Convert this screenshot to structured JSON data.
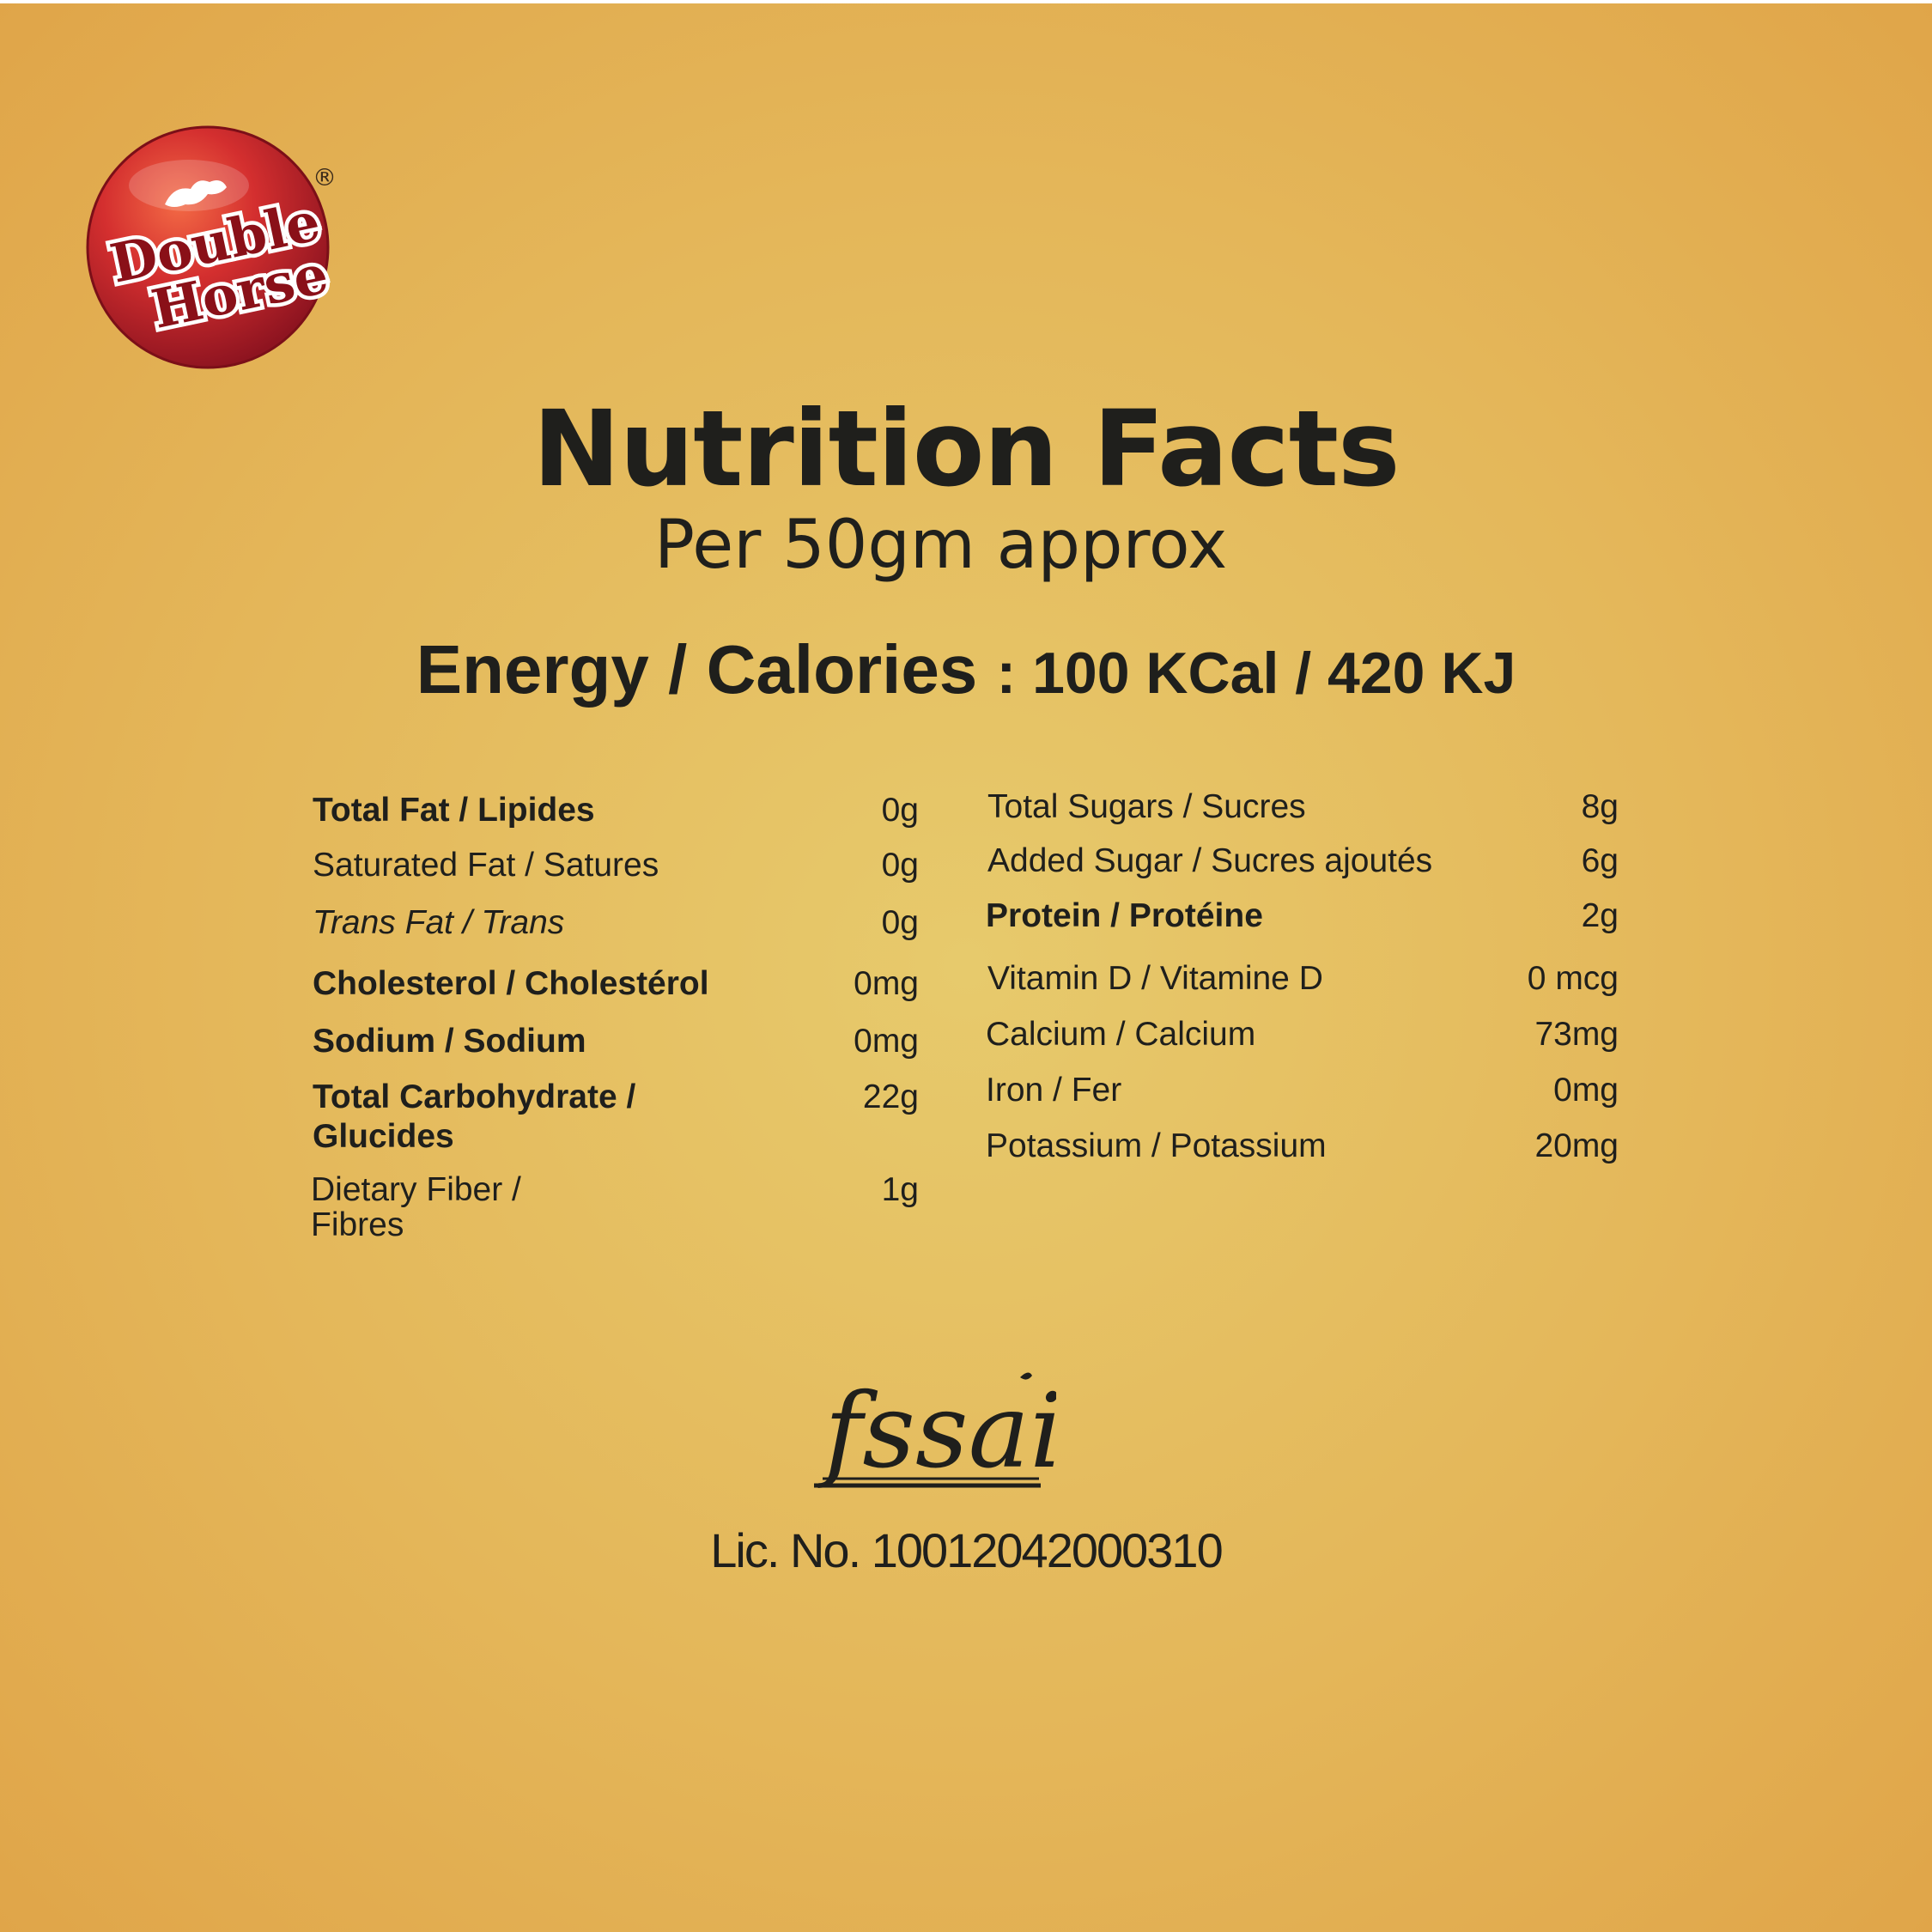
{
  "brand": {
    "name": "Double Horse",
    "registered_mark": "®"
  },
  "heading": {
    "title": "Nutrition Facts",
    "serving": "Per 50gm approx"
  },
  "energy": {
    "label": "Energy / Calories",
    "value": ": 100 KCal / 420 KJ"
  },
  "left_nutrients": [
    {
      "label": "Total Fat /  Lipides",
      "amount": "0g",
      "style": "bold"
    },
    {
      "label": "Saturated Fat /  Satures",
      "amount": "0g",
      "style": "normal"
    },
    {
      "label": "Trans Fat /  Trans",
      "amount": "0g",
      "style": "italic"
    },
    {
      "label": "Cholesterol /  Cholestérol",
      "amount": "0mg",
      "style": "bold"
    },
    {
      "label": "Sodium /  Sodium",
      "amount": "0mg",
      "style": "bold"
    },
    {
      "label": "Total Carbohydrate /",
      "label_line2": "Glucides",
      "amount": "22g",
      "style": "bold"
    },
    {
      "label": "Dietary Fiber /",
      "label_line2": "Fibres",
      "amount": "1g",
      "style": "normal"
    }
  ],
  "right_nutrients": [
    {
      "label": "Total Sugars / Sucres",
      "amount": "8g",
      "style": "normal"
    },
    {
      "label": "Added Sugar / Sucres ajoutés",
      "amount": "6g",
      "style": "normal"
    },
    {
      "label": "Protein / Protéine",
      "amount": "2g",
      "style": "bold"
    },
    {
      "label": "Vitamin D / Vitamine D",
      "amount": "0 mcg",
      "style": "normal"
    },
    {
      "label": "Calcium / Calcium",
      "amount": "73mg",
      "style": "normal"
    },
    {
      "label": "Iron / Fer",
      "amount": "0mg",
      "style": "normal"
    },
    {
      "label": "Potassium / Potassium",
      "amount": "20mg",
      "style": "normal"
    }
  ],
  "certification": {
    "logo_text": "fssai",
    "license": "Lic. No. 10012042000310"
  },
  "colors": {
    "background": "#e4b75a",
    "text": "#1f1f1c",
    "logo_red": "#c8262b"
  }
}
